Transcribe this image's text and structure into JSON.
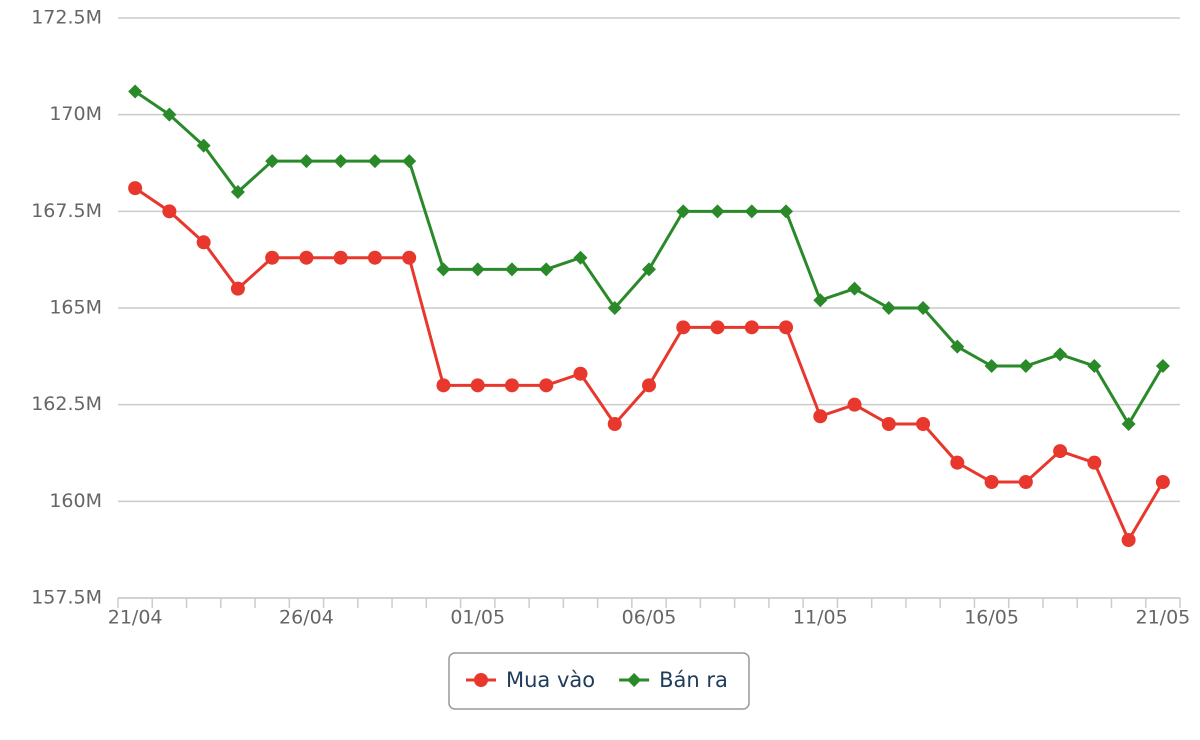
{
  "chart_data": {
    "type": "line",
    "categories": [
      "21/04",
      null,
      null,
      null,
      null,
      "26/04",
      null,
      null,
      null,
      null,
      "01/05",
      null,
      null,
      null,
      null,
      "06/05",
      null,
      null,
      null,
      null,
      "11/05",
      null,
      null,
      null,
      null,
      "16/05",
      null,
      null,
      null,
      null,
      "21/05"
    ],
    "series": [
      {
        "name": "Mua vào",
        "color": "#e8382e",
        "marker": "circle",
        "values": [
          168.1,
          167.5,
          166.7,
          165.5,
          166.3,
          166.3,
          166.3,
          166.3,
          166.3,
          163.0,
          163.0,
          163.0,
          163.0,
          163.3,
          162.0,
          163.0,
          164.5,
          164.5,
          164.5,
          164.5,
          162.2,
          162.5,
          162.0,
          162.0,
          161.0,
          160.5,
          160.5,
          161.3,
          161.0,
          159.0,
          160.5
        ]
      },
      {
        "name": "Bán ra",
        "color": "#2a8a2a",
        "marker": "diamond",
        "values": [
          170.6,
          170.0,
          169.2,
          168.0,
          168.8,
          168.8,
          168.8,
          168.8,
          168.8,
          166.0,
          166.0,
          166.0,
          166.0,
          166.3,
          165.0,
          166.0,
          167.5,
          167.5,
          167.5,
          167.5,
          165.2,
          165.5,
          165.0,
          165.0,
          164.0,
          163.5,
          163.5,
          163.8,
          163.5,
          162.0,
          163.5
        ]
      }
    ],
    "ylim": [
      157.5,
      172.5
    ],
    "yticks": [
      {
        "value": 157.5,
        "label": "157.5M"
      },
      {
        "value": 160,
        "label": "160M"
      },
      {
        "value": 162.5,
        "label": "162.5M"
      },
      {
        "value": 165,
        "label": "165M"
      },
      {
        "value": 167.5,
        "label": "167.5M"
      },
      {
        "value": 170,
        "label": "170M"
      },
      {
        "value": 172.5,
        "label": "172.5M"
      }
    ],
    "grid": true,
    "legend": "bottom"
  }
}
